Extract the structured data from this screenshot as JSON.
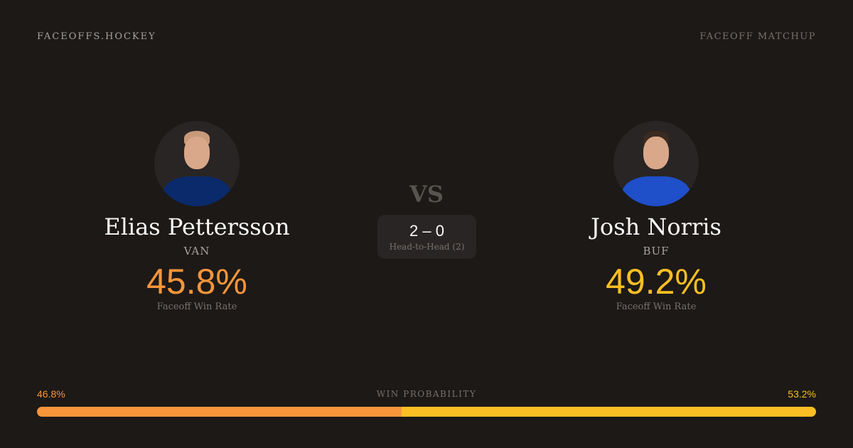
{
  "header": {
    "brand": "FACEOFFS.HOCKEY",
    "tag": "FACEOFF MATCHUP"
  },
  "left": {
    "name": "Elias Pettersson",
    "team": "VAN",
    "win_rate": "45.8%",
    "win_rate_label": "Faceoff Win Rate",
    "color": "#f7953b",
    "jersey": "#0b2a6b"
  },
  "right": {
    "name": "Josh Norris",
    "team": "BUF",
    "win_rate": "49.2%",
    "win_rate_label": "Faceoff Win Rate",
    "color": "#fbbf24",
    "jersey": "#1f4fc9"
  },
  "vs": "VS",
  "h2h": {
    "score": "2 – 0",
    "label": "Head-to-Head (2)"
  },
  "probability": {
    "label": "WIN PROBABILITY",
    "left": "46.8%",
    "right": "53.2%",
    "left_value": 46.8,
    "right_value": 53.2
  }
}
